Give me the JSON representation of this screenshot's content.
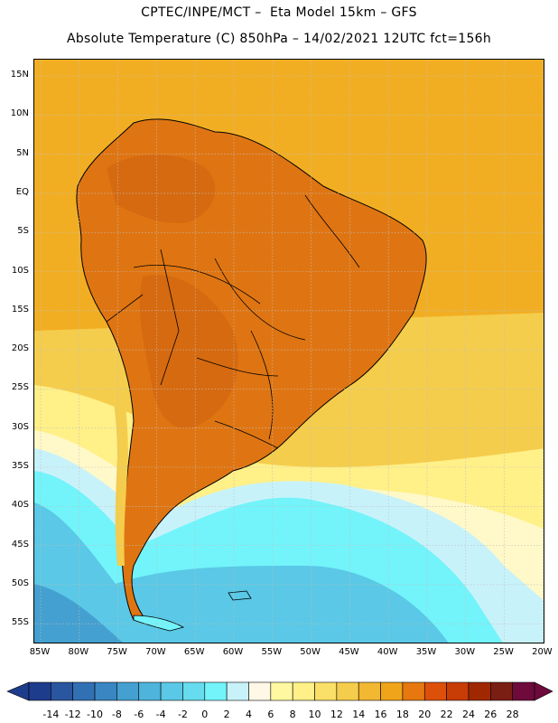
{
  "header": {
    "line1": "CPTEC/INPE/MCT –  Eta Model 15km – GFS",
    "line2": "Absolute Temperature (C) 850hPa – 14/02/2021 12UTC fct=156h"
  },
  "axes": {
    "lat_labels": [
      "15N",
      "10N",
      "5N",
      "EQ",
      "5S",
      "10S",
      "15S",
      "20S",
      "25S",
      "30S",
      "35S",
      "40S",
      "45S",
      "50S",
      "55S"
    ],
    "lon_labels": [
      "85W",
      "80W",
      "75W",
      "70W",
      "65W",
      "60W",
      "55W",
      "50W",
      "45W",
      "40W",
      "35W",
      "30W",
      "25W",
      "20W"
    ]
  },
  "colorbar": {
    "labels": [
      "-14",
      "-12",
      "-10",
      "-8",
      "-6",
      "-4",
      "-2",
      "0",
      "2",
      "4",
      "6",
      "8",
      "10",
      "12",
      "14",
      "16",
      "18",
      "20",
      "22",
      "24",
      "26",
      "28"
    ],
    "colors": [
      "#1e3c8c",
      "#2a56a0",
      "#3270b4",
      "#3a86c2",
      "#44a0d0",
      "#4eb4dc",
      "#5ac8e6",
      "#66dcee",
      "#72f4fa",
      "#c8f2fa",
      "#fff8e6",
      "#fff8a0",
      "#fff088",
      "#fae068",
      "#f5cd4c",
      "#f2b832",
      "#f0a41a",
      "#e6780f",
      "#dc500a",
      "#c83c05",
      "#a02800",
      "#7a1e14",
      "#6e0a3c"
    ],
    "under_color": "#1e3c8c",
    "over_color": "#6e0a3c"
  },
  "map": {
    "field_colors": {
      "ocean_north": "#f2ae23",
      "continent_hot": "#df7512",
      "continent_core": "#d66a10",
      "warm": "#f5cd4c",
      "mild": "#fff088",
      "cool_pale": "#fff8c8",
      "cold_light": "#c8f2fa",
      "cold": "#72f4fa",
      "colder": "#5ac8e6",
      "coldest": "#44a0d0"
    }
  }
}
